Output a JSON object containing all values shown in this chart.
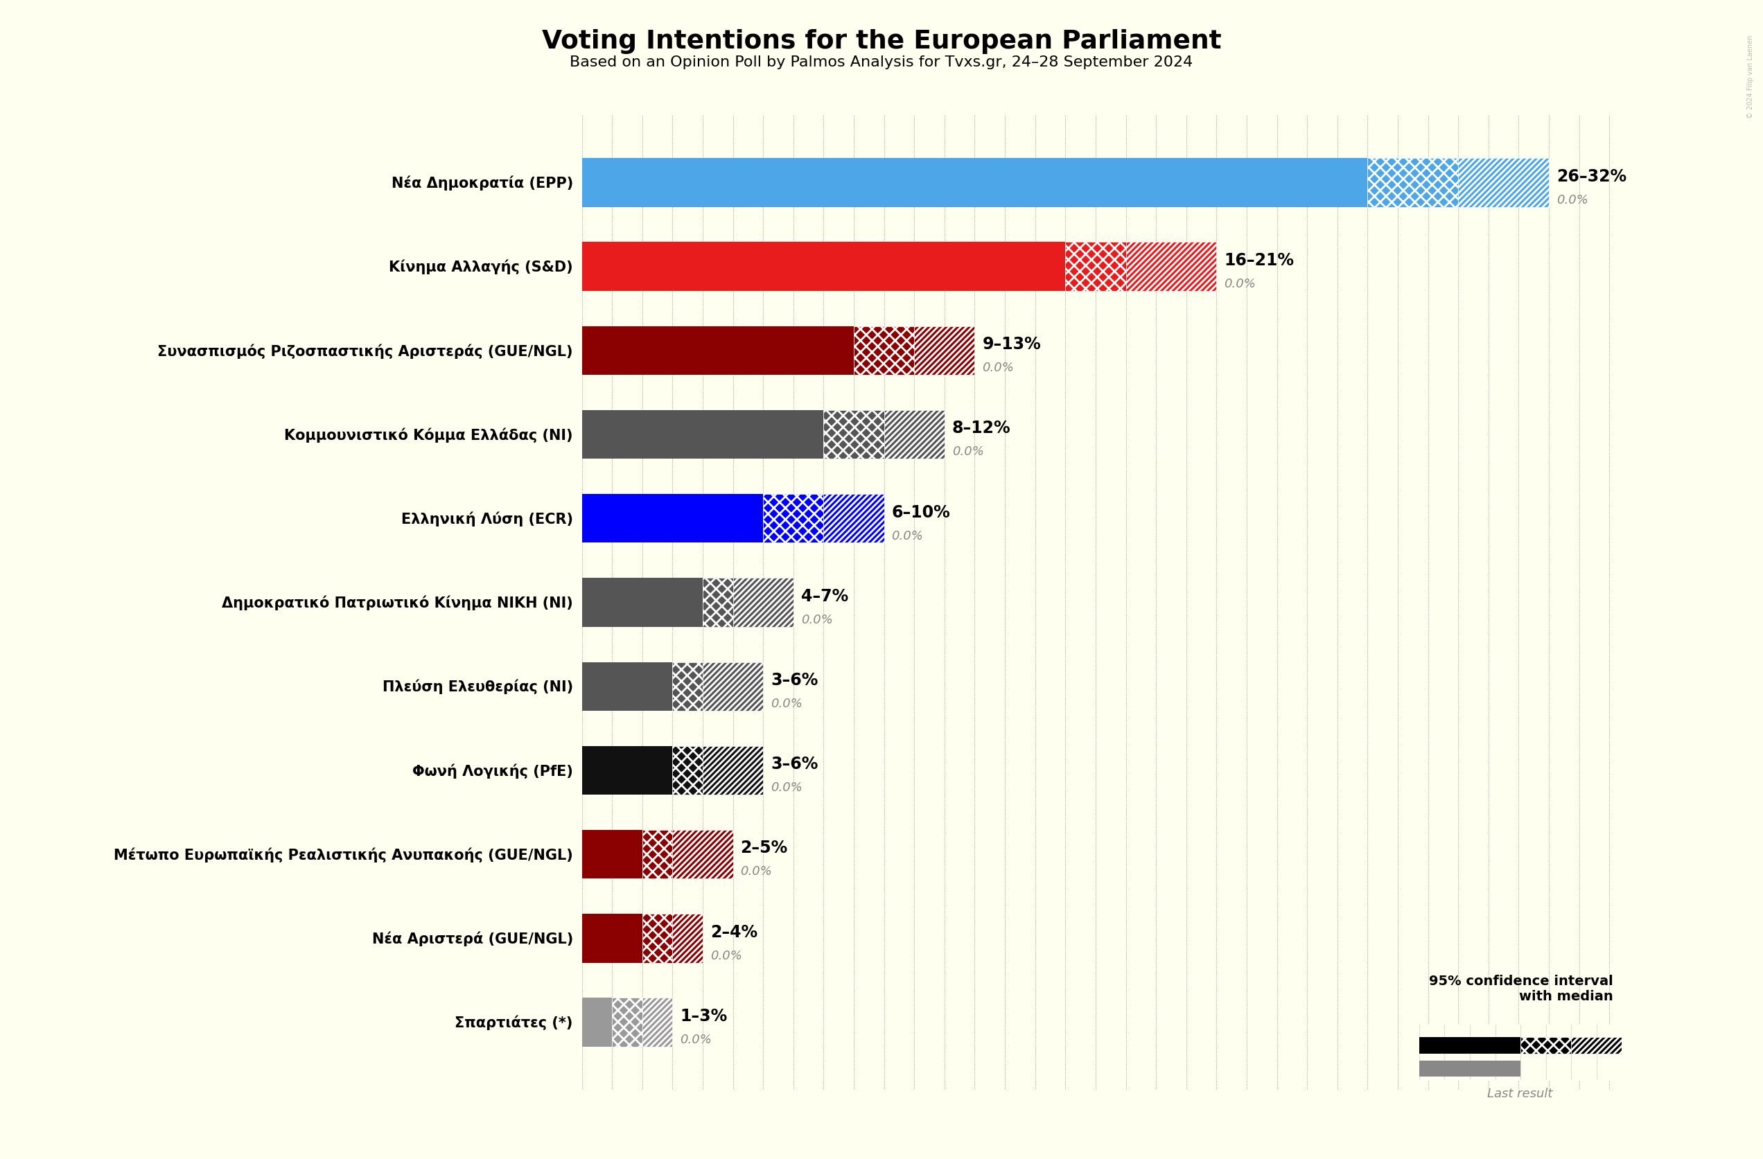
{
  "title": "Voting Intentions for the European Parliament",
  "subtitle": "Based on an Opinion Poll by Palmos Analysis for Tvxs.gr, 24–28 September 2024",
  "background_color": "#FFFFF0",
  "parties": [
    {
      "name": "Nέα Δημοκρατία (EPP)",
      "low": 26,
      "high": 32,
      "median": 29,
      "last": 0.0,
      "color": "#4da6e8"
    },
    {
      "name": "Κίνημα Αλλαγής (S&D)",
      "low": 16,
      "high": 21,
      "median": 18,
      "last": 0.0,
      "color": "#e81c1c"
    },
    {
      "name": "Συνασπισμός Ριζοσπαστικής Αριστεράς (GUE/NGL)",
      "low": 9,
      "high": 13,
      "median": 11,
      "last": 0.0,
      "color": "#8b0000"
    },
    {
      "name": "Κομμουνιστικό Κόμμα Ελλάδας (NI)",
      "low": 8,
      "high": 12,
      "median": 10,
      "last": 0.0,
      "color": "#555555"
    },
    {
      "name": "Ελληνική Λύση (ECR)",
      "low": 6,
      "high": 10,
      "median": 8,
      "last": 0.0,
      "color": "#0000ff"
    },
    {
      "name": "Δημοκρατικό Πατριωτικό Κίνημα ΝΙΚΗ (NI)",
      "low": 4,
      "high": 7,
      "median": 5,
      "last": 0.0,
      "color": "#555555"
    },
    {
      "name": "Πλεύση Ελευθερίας (NI)",
      "low": 3,
      "high": 6,
      "median": 4,
      "last": 0.0,
      "color": "#555555"
    },
    {
      "name": "Φωνή Λογικής (PfE)",
      "low": 3,
      "high": 6,
      "median": 4,
      "last": 0.0,
      "color": "#111111"
    },
    {
      "name": "Μέτωπο Ευρωπαϊκής Ρεαλιστικής Ανυπακοής (GUE/NGL)",
      "low": 2,
      "high": 5,
      "median": 3,
      "last": 0.0,
      "color": "#8b0000"
    },
    {
      "name": "Νέα Αριστερά (GUE/NGL)",
      "low": 2,
      "high": 4,
      "median": 3,
      "last": 0.0,
      "color": "#8b0000"
    },
    {
      "name": "Σπαρτιάτες (*)",
      "low": 1,
      "high": 3,
      "median": 2,
      "last": 0.0,
      "color": "#999999"
    }
  ],
  "xlim_max": 35,
  "copyright": "© 2024 Filip van Laenen",
  "bar_height": 0.58,
  "hatch_linewidth": 2.0
}
